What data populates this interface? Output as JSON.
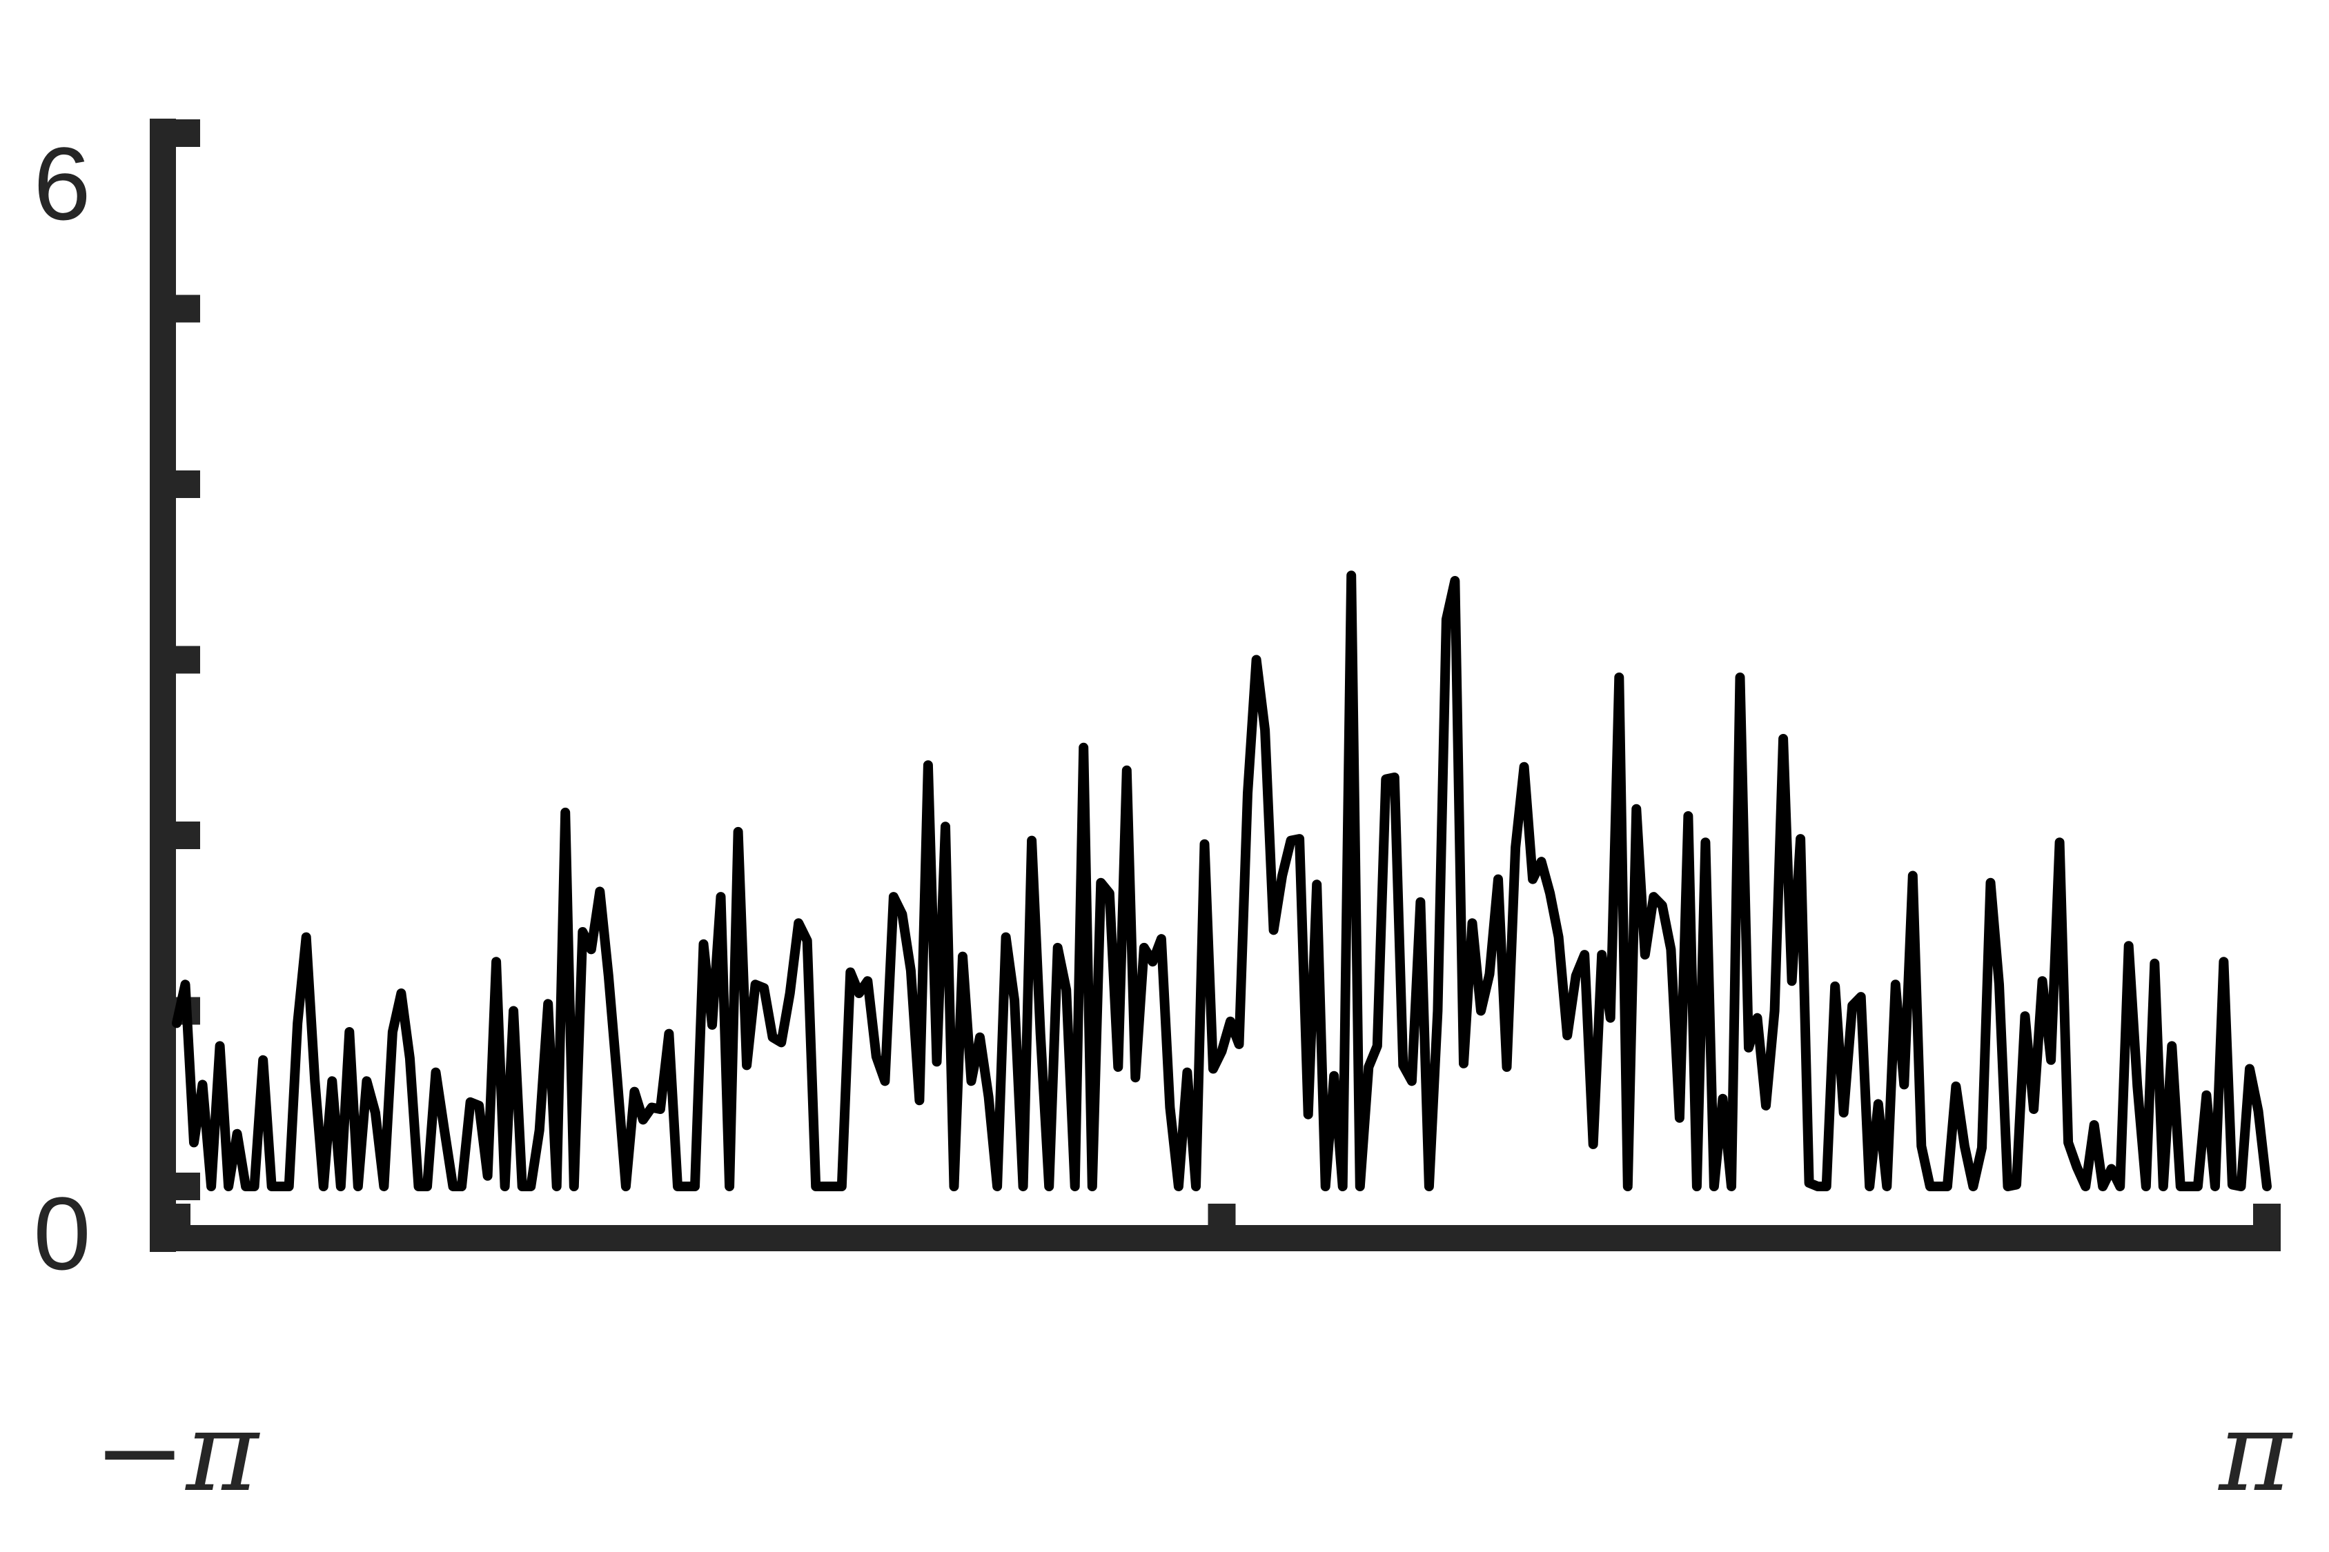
{
  "chart_data": {
    "type": "line",
    "title": "",
    "xlabel": "",
    "ylabel": "",
    "xlim": [
      -3.14159,
      3.14159
    ],
    "ylim": [
      0,
      6
    ],
    "grid": false,
    "legend": "none",
    "x_ticks": [
      -3.14159,
      0,
      3.14159
    ],
    "x_tick_labels": [
      "−π",
      "",
      "π"
    ],
    "y_ticks": [
      0,
      1,
      2,
      3,
      4,
      5,
      6
    ],
    "y_tick_labels": [
      "0",
      "",
      "",
      "",
      "",
      "",
      "6"
    ],
    "colors": {
      "line": "#000000",
      "axes": "#262626"
    },
    "series": [
      {
        "values": [
          0.93,
          1.15,
          0.25,
          0.58,
          0.0,
          0.8,
          0.0,
          0.3,
          0.0,
          0.0,
          0.72,
          0.0,
          0.0,
          0.0,
          0.93,
          1.42,
          0.6,
          0.0,
          0.6,
          0.0,
          0.88,
          0.0,
          0.6,
          0.42,
          0.0,
          0.88,
          1.1,
          0.73,
          0.0,
          0.0,
          0.65,
          0.32,
          0.0,
          0.0,
          0.48,
          0.46,
          0.06,
          1.28,
          0.0,
          1.0,
          0.0,
          0.0,
          0.32,
          1.04,
          0.0,
          2.13,
          0.0,
          1.45,
          1.35,
          1.68,
          1.2,
          0.62,
          0.0,
          0.54,
          0.38,
          0.45,
          0.44,
          0.87,
          0.0,
          0.0,
          0.0,
          1.38,
          0.92,
          1.65,
          0.0,
          2.02,
          0.69,
          1.15,
          1.13,
          0.85,
          0.82,
          1.1,
          1.5,
          1.4,
          0.0,
          0.0,
          0.0,
          0.0,
          1.22,
          1.1,
          1.17,
          0.74,
          0.6,
          1.65,
          1.55,
          1.23,
          0.49,
          2.4,
          0.71,
          2.05,
          0.0,
          1.31,
          0.6,
          0.85,
          0.51,
          0.0,
          1.42,
          1.06,
          0.0,
          1.97,
          0.87,
          0.0,
          1.36,
          1.12,
          0.0,
          2.5,
          0.0,
          1.73,
          1.67,
          0.68,
          2.37,
          0.62,
          1.36,
          1.28,
          1.41,
          0.45,
          0.0,
          0.65,
          0.0,
          1.95,
          0.67,
          0.77,
          0.94,
          0.81,
          2.24,
          3.0,
          2.6,
          1.46,
          1.77,
          1.97,
          1.98,
          0.41,
          1.72,
          0.0,
          0.63,
          0.0,
          3.48,
          0.0,
          0.68,
          0.8,
          2.32,
          2.33,
          0.69,
          0.6,
          1.62,
          0.0,
          1.0,
          3.23,
          3.45,
          0.7,
          1.5,
          1.0,
          1.21,
          1.75,
          0.68,
          1.93,
          2.39,
          1.75,
          1.85,
          1.67,
          1.42,
          0.86,
          1.2,
          1.32,
          0.24,
          1.32,
          0.96,
          2.9,
          0.0,
          2.15,
          1.32,
          1.65,
          1.6,
          1.35,
          0.39,
          2.11,
          0.0,
          1.96,
          0.0,
          0.5,
          0.0,
          2.9,
          0.79,
          0.96,
          0.46,
          1.0,
          2.55,
          1.17,
          1.98,
          0.02,
          0.0,
          0.0,
          1.14,
          0.42,
          1.03,
          1.08,
          0.0,
          0.47,
          0.0,
          1.15,
          0.58,
          1.77,
          0.23,
          0.0,
          0.0,
          0.0,
          0.57,
          0.23,
          0.0,
          0.22,
          1.73,
          1.15,
          0.0,
          0.01,
          0.97,
          0.44,
          1.17,
          0.72,
          1.96,
          0.25,
          0.11,
          0.0,
          0.35,
          0.0,
          0.1,
          0.0,
          1.37,
          0.57,
          0.0,
          1.27,
          0.0,
          0.8,
          0.0,
          0.0,
          0.0,
          0.52,
          0.0,
          1.28,
          0.01,
          0.0,
          0.67,
          0.43,
          0.0
        ]
      }
    ]
  }
}
